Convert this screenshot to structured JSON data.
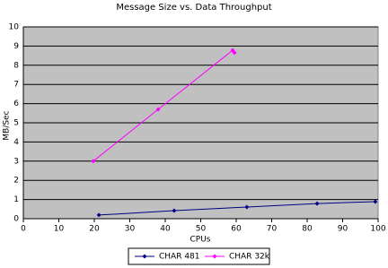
{
  "chart_data": {
    "type": "line",
    "title": "Message Size vs. Data Throughput",
    "x_label": "CPUs",
    "y_label": "MB/Sec",
    "xlim": [
      0,
      100
    ],
    "xticks": [
      0,
      10,
      20,
      30,
      40,
      50,
      60,
      70,
      80,
      90,
      100
    ],
    "ylim": [
      0,
      10
    ],
    "yticks": [
      0,
      1,
      2,
      3,
      4,
      5,
      6,
      7,
      8,
      9,
      10
    ],
    "grid": true,
    "legend": "bottom",
    "series": [
      {
        "name": "CHAR 481",
        "color": "#000080",
        "x": [
          21.3,
          42.5,
          63,
          82.8,
          99.2
        ],
        "values": [
          0.19,
          0.42,
          0.61,
          0.79,
          0.89
        ]
      },
      {
        "name": "CHAR 32k",
        "color": "#ff00ff",
        "x": [
          19.7,
          38,
          59,
          59.5
        ],
        "values": [
          3.0,
          5.7,
          8.78,
          8.65
        ]
      }
    ]
  }
}
